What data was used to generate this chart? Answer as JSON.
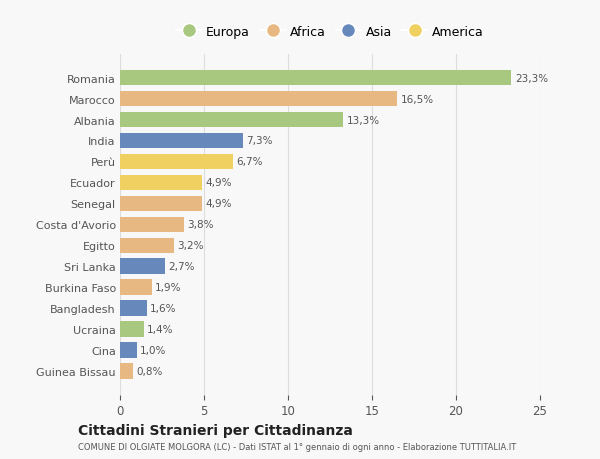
{
  "countries": [
    "Romania",
    "Marocco",
    "Albania",
    "India",
    "Perù",
    "Ecuador",
    "Senegal",
    "Costa d'Avorio",
    "Egitto",
    "Sri Lanka",
    "Burkina Faso",
    "Bangladesh",
    "Ucraina",
    "Cina",
    "Guinea Bissau"
  ],
  "values": [
    23.3,
    16.5,
    13.3,
    7.3,
    6.7,
    4.9,
    4.9,
    3.8,
    3.2,
    2.7,
    1.9,
    1.6,
    1.4,
    1.0,
    0.8
  ],
  "continents": [
    "Europa",
    "Africa",
    "Europa",
    "Asia",
    "America",
    "America",
    "Africa",
    "Africa",
    "Africa",
    "Asia",
    "Africa",
    "Asia",
    "Europa",
    "Asia",
    "Africa"
  ],
  "continent_colors": {
    "Europa": "#a8c880",
    "Africa": "#e8b882",
    "Asia": "#6688bb",
    "America": "#f0d060"
  },
  "legend_order": [
    "Europa",
    "Africa",
    "Asia",
    "America"
  ],
  "title": "Cittadini Stranieri per Cittadinanza",
  "subtitle": "COMUNE DI OLGIATE MOLGORA (LC) - Dati ISTAT al 1° gennaio di ogni anno - Elaborazione TUTTITALIA.IT",
  "xlim": [
    0,
    25
  ],
  "xticks": [
    0,
    5,
    10,
    15,
    20,
    25
  ],
  "background_color": "#f8f8f8",
  "grid_color": "#dddddd",
  "label_color": "#555555",
  "bar_height": 0.75
}
